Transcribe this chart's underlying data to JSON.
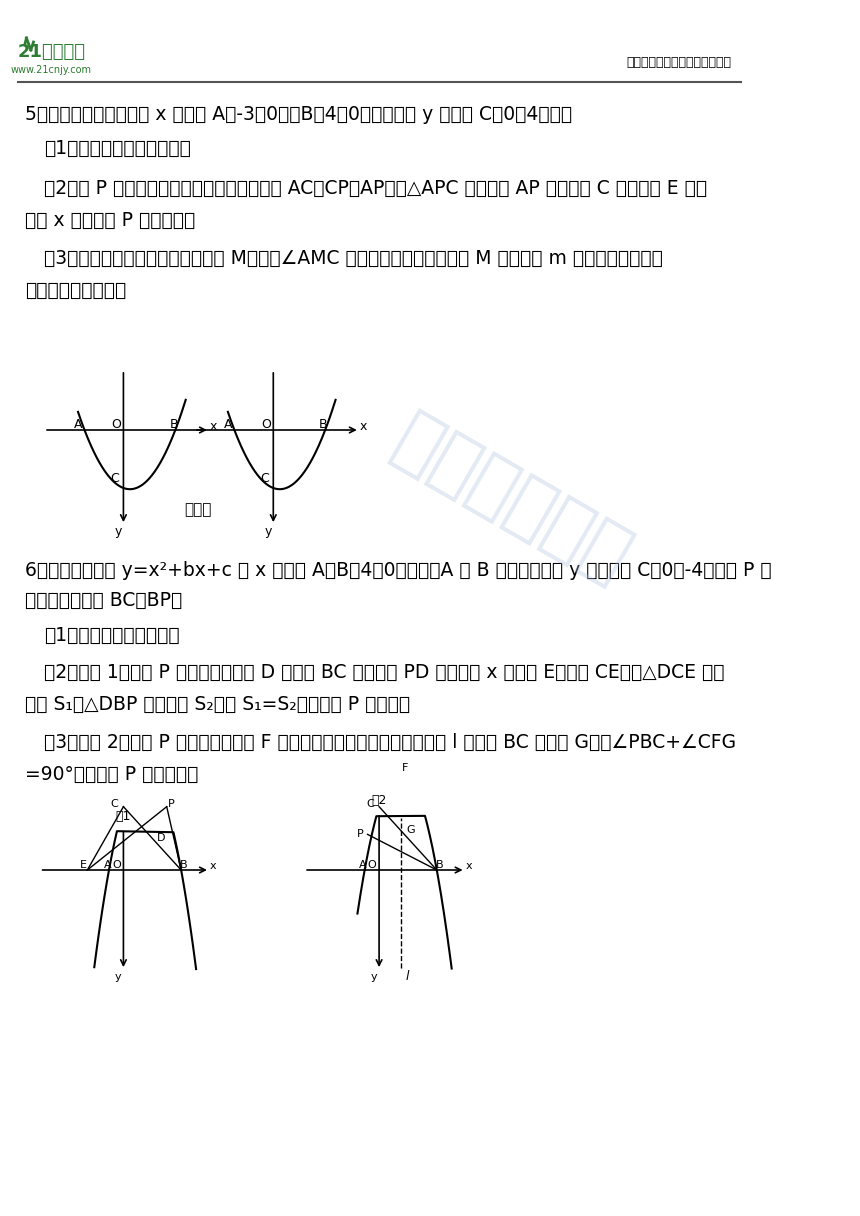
{
  "page_bg": "#ffffff",
  "header_line_color": "#000000",
  "logo_text": "21世纪教育",
  "logo_url": "www.21cnjy.com",
  "header_right": "中小学教育资源及组卷应用平台",
  "watermark_text": "全网精选资料",
  "q5_text_line1": "5．如图，已知抛物线与 x 轴交于 A（-3，0），B（4，0）两点，与 y 轴交于 C（0，4）点．",
  "q5_sub1": "（1）求该抛物线的表达式；",
  "q5_sub2": "（2）点 P 是抛物线在第一象限上的点，连接 AC，CP，AP，若△APC 沿着直线 AP 翻折后点 C 的对应点 E 恰好",
  "q5_sub2b": "落在 x 轴上，求 P 点的坐标；",
  "q5_sub3": "（3）在抛物线对称轴上是否存在点 M，使得∠AMC 是锐角？若存在，求出点 M 的纵坐标 m 的取值范围；若不",
  "q5_sub3b": "存在，请说明理由．",
  "bei_yong_tu": "备用图",
  "q6_text_line1": "6．如图，抛物线 y=x²+bx+c 与 x 轴交于 A，B（4，0）两点（A 在 B 的左侧），与 y 轴交于点 C（0，-4）．点 P 在",
  "q6_text_line2": "抛物线上，连接 BC，BP．",
  "q6_sub1": "（1）求抛物线的解析式；",
  "q6_sub2": "（2）如图 1，若点 P 在第四象限，点 D 在线段 BC 上，连接 PD 并延长交 x 轴于点 E，连接 CE，记△DCE 的面",
  "q6_sub2b": "积为 S₁，△DBP 的面积为 S₂，当 S₁=S₂时，求点 P 的坐标；",
  "q6_sub3": "（3）如图 2，若点 P 在第二象限，点 F 为抛物线的顶点，抛物线的对称轴 l 与线段 BC 交于点 G，当∠PBC+∠CFG",
  "q6_sub3b": "=90°时，求点 P 的横坐标．",
  "text_color": "#000000",
  "green_color": "#2e7d32"
}
